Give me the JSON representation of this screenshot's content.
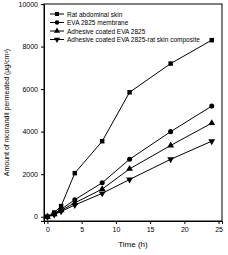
{
  "chart_data": {
    "type": "line",
    "x_label": "Time (h)",
    "y_label": "Amount of nicorandil permeated (μg/cm²)",
    "x": [
      0,
      1,
      2,
      4,
      8,
      12,
      18,
      24
    ],
    "series": [
      {
        "name": "Rat abdominal skin",
        "color": "#000000",
        "marker": "square",
        "values": [
          0,
          200,
          500,
          2050,
          3550,
          5850,
          7200,
          8300
        ]
      },
      {
        "name": "EVA 2825 membrane",
        "color": "#000000",
        "marker": "circle",
        "values": [
          0,
          150,
          350,
          800,
          1600,
          2700,
          4000,
          5200
        ]
      },
      {
        "name": "Adhesive coated EVA 2825",
        "color": "#000000",
        "marker": "triangle-up",
        "values": [
          0,
          120,
          300,
          650,
          1300,
          2250,
          3350,
          4400
        ]
      },
      {
        "name": "Adhesive coated EVA 2825-rat skin composite",
        "color": "#000000",
        "marker": "triangle-down",
        "values": [
          0,
          100,
          250,
          550,
          1100,
          1750,
          2700,
          3550
        ]
      }
    ],
    "xlim": [
      -0.5,
      25.5
    ],
    "ylim": [
      -200,
      10000
    ],
    "xticks": [
      0,
      5,
      10,
      15,
      20,
      25
    ],
    "yticks": [
      0,
      2000,
      4000,
      6000,
      8000,
      10000
    ],
    "legend": "upper left",
    "grid": false
  }
}
